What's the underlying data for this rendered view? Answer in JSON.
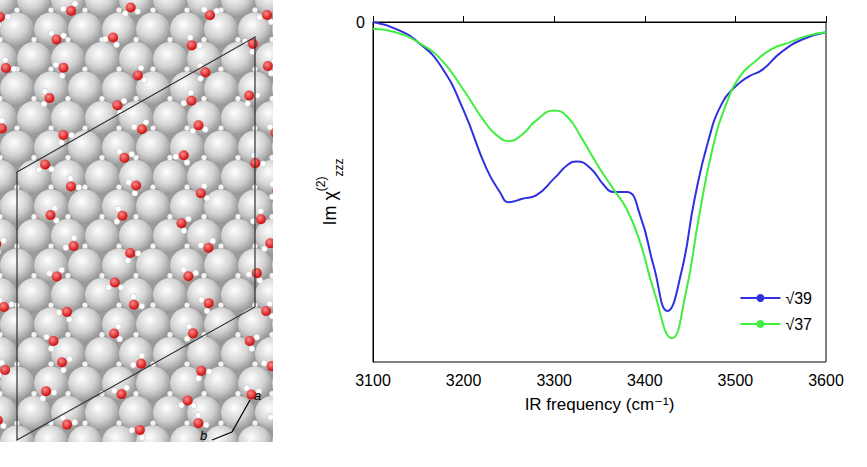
{
  "chart_data": {
    "type": "line",
    "xlabel": "IR frequency (cm⁻¹)",
    "ylabel": {
      "text": "Im χ",
      "superscript": "(2)",
      "subscript": "zzz"
    },
    "xlim": [
      3100,
      3600
    ],
    "xticks": [
      3100,
      3200,
      3300,
      3400,
      3500,
      3600
    ],
    "ylim": [
      -1,
      0
    ],
    "yticks": [
      0
    ],
    "grid": false,
    "legend": "bottom-right",
    "series": [
      {
        "name": "√39",
        "color": "#3030e0",
        "line_style": "solid",
        "x": [
          3100,
          3125,
          3150,
          3175,
          3200,
          3225,
          3240,
          3250,
          3265,
          3280,
          3300,
          3315,
          3325,
          3340,
          3355,
          3365,
          3380,
          3395,
          3410,
          3425,
          3440,
          3455,
          3470,
          3485,
          3500,
          3515,
          3530,
          3550,
          3575,
          3600
        ],
        "values": [
          0.0,
          -0.02,
          -0.06,
          -0.13,
          -0.26,
          -0.43,
          -0.5,
          -0.53,
          -0.52,
          -0.51,
          -0.46,
          -0.42,
          -0.41,
          -0.43,
          -0.48,
          -0.5,
          -0.5,
          -0.57,
          -0.72,
          -0.85,
          -0.74,
          -0.52,
          -0.35,
          -0.24,
          -0.19,
          -0.16,
          -0.14,
          -0.09,
          -0.05,
          -0.03
        ]
      },
      {
        "name": "√37",
        "color": "#40ee40",
        "line_style": "solid",
        "x": [
          3100,
          3125,
          3150,
          3175,
          3200,
          3225,
          3240,
          3250,
          3265,
          3280,
          3300,
          3315,
          3330,
          3350,
          3365,
          3380,
          3395,
          3410,
          3430,
          3445,
          3460,
          3475,
          3490,
          3505,
          3520,
          3540,
          3560,
          3580,
          3600
        ],
        "values": [
          -0.02,
          -0.03,
          -0.06,
          -0.11,
          -0.2,
          -0.3,
          -0.34,
          -0.35,
          -0.33,
          -0.29,
          -0.26,
          -0.28,
          -0.34,
          -0.43,
          -0.49,
          -0.55,
          -0.65,
          -0.79,
          -0.93,
          -0.8,
          -0.57,
          -0.37,
          -0.24,
          -0.16,
          -0.12,
          -0.08,
          -0.06,
          -0.04,
          -0.03
        ]
      }
    ]
  },
  "structure_panel": {
    "axis_labels": [
      "a",
      "b"
    ]
  }
}
